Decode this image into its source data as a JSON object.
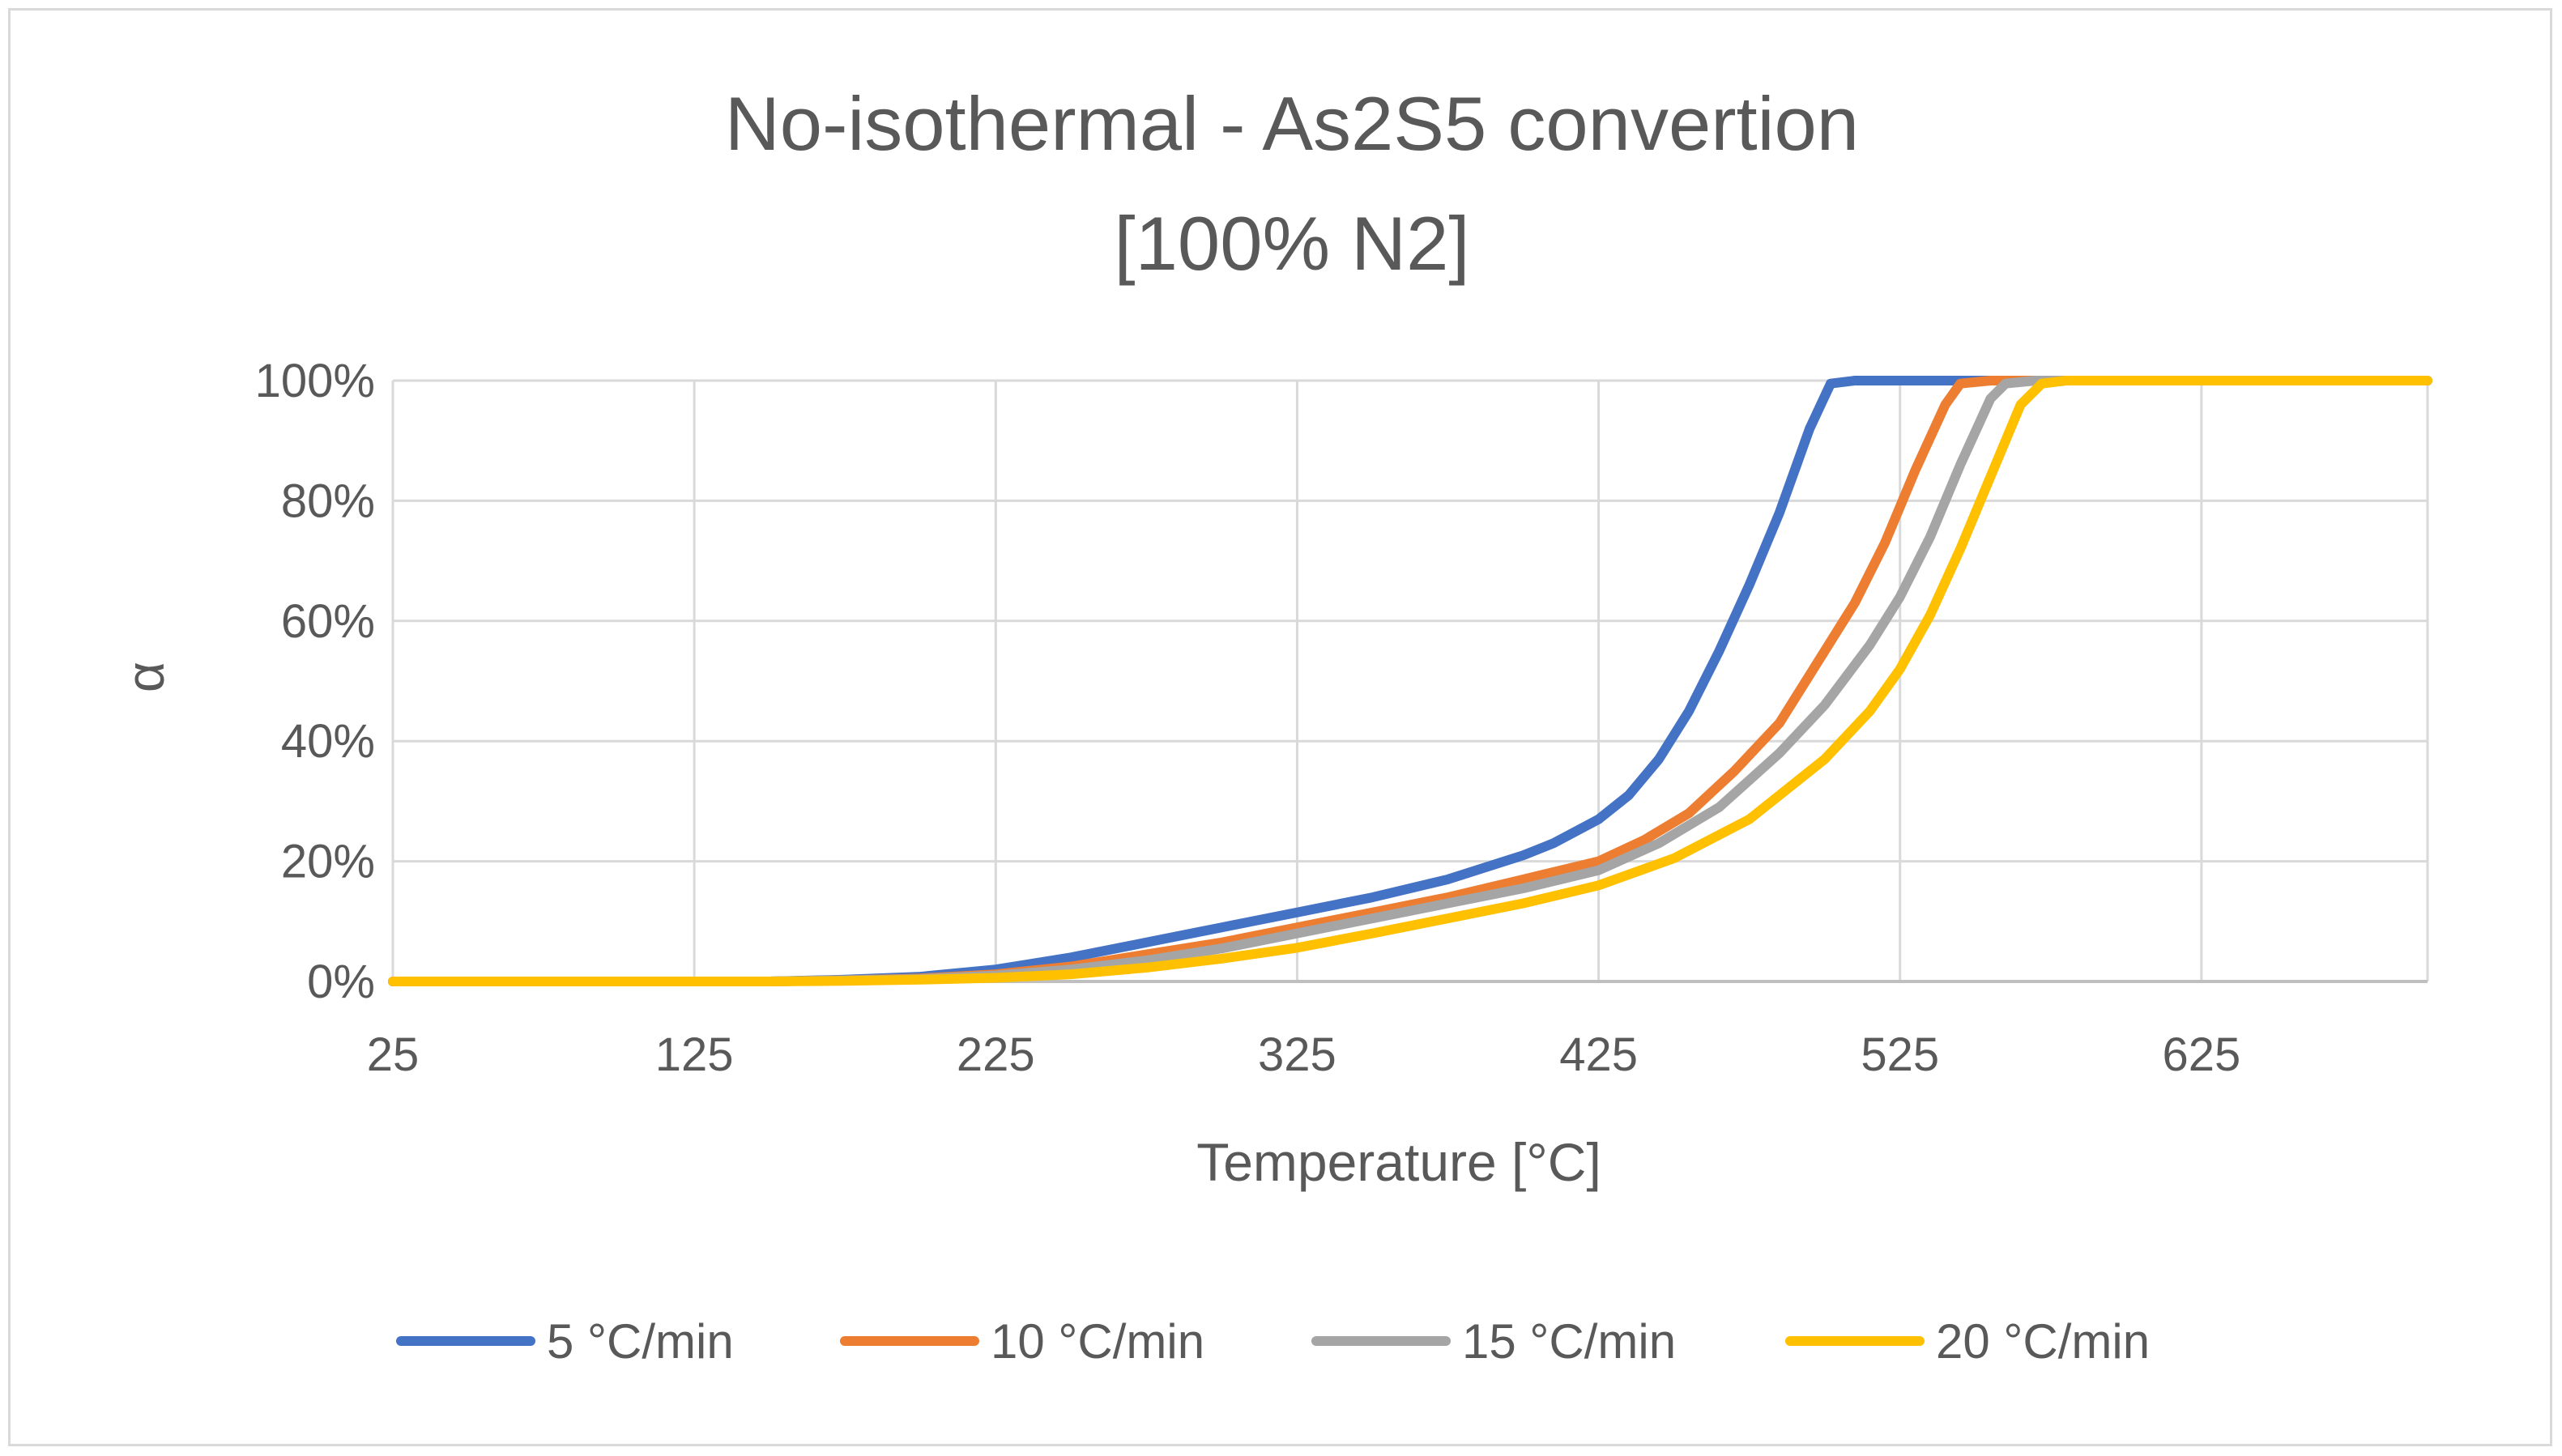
{
  "chart_data": {
    "type": "line",
    "title_lines": [
      "No-isothermal - As2S5 convertion",
      "[100% N2]"
    ],
    "xlabel": "Temperature [°C]",
    "ylabel": "α",
    "xlim": [
      25,
      700
    ],
    "ylim": [
      0,
      100
    ],
    "x_ticks": [
      25,
      125,
      225,
      325,
      425,
      525,
      625
    ],
    "x_tick_labels": [
      "25",
      "125",
      "225",
      "325",
      "425",
      "525",
      "625"
    ],
    "y_ticks": [
      0,
      20,
      40,
      60,
      80,
      100
    ],
    "y_tick_labels": [
      "0%",
      "20%",
      "40%",
      "60%",
      "80%",
      "100%"
    ],
    "grid": true,
    "legend_position": "bottom",
    "series": [
      {
        "name": "5 °C/min",
        "color": "#4472c4",
        "x": [
          25,
          100,
          150,
          175,
          200,
          225,
          250,
          275,
          300,
          325,
          350,
          375,
          400,
          410,
          425,
          435,
          445,
          455,
          465,
          475,
          485,
          495,
          502,
          510,
          550,
          600,
          650,
          700
        ],
        "y": [
          0,
          0,
          0,
          0.3,
          0.8,
          2,
          4,
          6.5,
          9,
          11.5,
          14,
          17,
          21,
          23,
          27,
          31,
          37,
          45,
          55,
          66,
          78,
          92,
          99.5,
          100,
          100,
          100,
          100,
          100
        ]
      },
      {
        "name": "10 °C/min",
        "color": "#ed7d31",
        "x": [
          25,
          100,
          150,
          175,
          200,
          225,
          250,
          275,
          300,
          325,
          350,
          375,
          400,
          425,
          440,
          455,
          470,
          485,
          500,
          510,
          520,
          530,
          540,
          545,
          555,
          600,
          650,
          700
        ],
        "y": [
          0,
          0,
          0,
          0.2,
          0.5,
          1.2,
          2.5,
          4.5,
          6.5,
          9,
          11.5,
          14,
          17,
          20,
          23.5,
          28,
          35,
          43,
          55,
          63,
          73,
          85,
          96,
          99.5,
          100,
          100,
          100,
          100
        ]
      },
      {
        "name": "15 °C/min",
        "color": "#a5a5a5",
        "x": [
          25,
          100,
          150,
          175,
          200,
          225,
          250,
          275,
          300,
          325,
          350,
          375,
          400,
          425,
          445,
          465,
          485,
          500,
          515,
          525,
          535,
          545,
          555,
          560,
          570,
          600,
          650,
          700
        ],
        "y": [
          0,
          0,
          0,
          0.2,
          0.4,
          1,
          2,
          3.5,
          5.5,
          8,
          10.5,
          13,
          15.5,
          18.5,
          23,
          29,
          38,
          46,
          56,
          64,
          74,
          86,
          97,
          99.5,
          100,
          100,
          100,
          100
        ]
      },
      {
        "name": "20 °C/min",
        "color": "#ffc000",
        "x": [
          25,
          100,
          150,
          175,
          200,
          225,
          250,
          275,
          300,
          325,
          350,
          375,
          400,
          425,
          450,
          475,
          500,
          515,
          525,
          535,
          545,
          555,
          565,
          572,
          580,
          600,
          650,
          700
        ],
        "y": [
          0,
          0,
          0,
          0.1,
          0.3,
          0.6,
          1.2,
          2.3,
          3.8,
          5.6,
          8,
          10.5,
          13,
          16,
          20.5,
          27,
          37,
          45,
          52,
          61,
          72,
          84,
          96,
          99.5,
          100,
          100,
          100,
          100
        ]
      }
    ]
  }
}
